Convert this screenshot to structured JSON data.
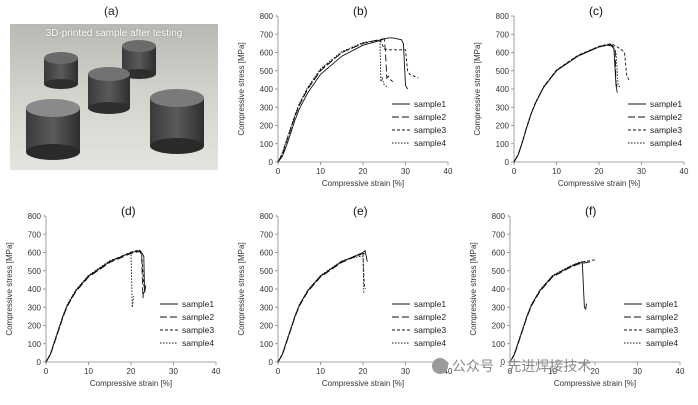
{
  "photo_panel": {
    "label": "(a)",
    "caption": "3D-printed sample after testing"
  },
  "watermark": "公众号 · 先进焊接技术",
  "chart_data": [
    {
      "id": "b",
      "type": "line",
      "label": "(b)",
      "xlabel": "Compressive strain [%]",
      "ylabel": "Compressive stress [MPa]",
      "xlim": [
        0,
        40
      ],
      "ylim": [
        0,
        800
      ],
      "xticks": [
        0,
        10,
        20,
        30,
        40
      ],
      "yticks": [
        0,
        100,
        200,
        300,
        400,
        500,
        600,
        700,
        800
      ],
      "legend_position": "lower-right",
      "series": [
        {
          "name": "sample1",
          "dash": "",
          "x": [
            0,
            1,
            2,
            3,
            4,
            5,
            7,
            10,
            15,
            20,
            24,
            25,
            26,
            27,
            28,
            29,
            29.5,
            30,
            30.5
          ],
          "y": [
            0,
            30,
            90,
            160,
            230,
            290,
            380,
            480,
            580,
            640,
            665,
            675,
            680,
            680,
            675,
            670,
            650,
            420,
            400
          ]
        },
        {
          "name": "sample2",
          "dash": "7 3",
          "x": [
            0,
            1,
            2,
            3,
            4,
            5,
            7,
            10,
            15,
            20,
            24,
            25,
            25.3,
            25.6,
            26,
            26.5,
            27
          ],
          "y": [
            0,
            40,
            110,
            180,
            250,
            310,
            400,
            500,
            600,
            650,
            672,
            675,
            600,
            460,
            470,
            450,
            440
          ]
        },
        {
          "name": "sample3",
          "dash": "3 2",
          "x": [
            0,
            1,
            2,
            3,
            4,
            5,
            7,
            10,
            15,
            20,
            24,
            25,
            26,
            28,
            30,
            30.5,
            31,
            32,
            33
          ],
          "y": [
            0,
            45,
            115,
            185,
            255,
            315,
            405,
            505,
            600,
            650,
            670,
            620,
            615,
            615,
            615,
            500,
            480,
            470,
            460
          ]
        },
        {
          "name": "sample4",
          "dash": "1.5 1.5",
          "x": [
            0,
            1,
            2,
            3,
            4,
            5,
            7,
            10,
            15,
            20,
            23,
            24,
            24.2,
            24.5,
            25,
            26
          ],
          "y": [
            0,
            50,
            120,
            190,
            260,
            320,
            410,
            510,
            605,
            655,
            665,
            668,
            440,
            460,
            420,
            410
          ]
        }
      ]
    },
    {
      "id": "c",
      "type": "line",
      "label": "(c)",
      "xlabel": "Compressive strain [%]",
      "ylabel": "Compressive stress [MPa]",
      "xlim": [
        0,
        40
      ],
      "ylim": [
        0,
        800
      ],
      "xticks": [
        0,
        10,
        20,
        30,
        40
      ],
      "yticks": [
        0,
        100,
        200,
        300,
        400,
        500,
        600,
        700,
        800
      ],
      "legend_position": "lower-right",
      "series": [
        {
          "name": "sample1",
          "dash": "",
          "x": [
            0,
            1,
            2,
            3,
            4,
            5,
            7,
            10,
            15,
            20,
            22,
            23,
            23.5,
            24,
            24.3
          ],
          "y": [
            0,
            40,
            110,
            190,
            260,
            320,
            410,
            500,
            580,
            630,
            640,
            635,
            620,
            420,
            380
          ]
        },
        {
          "name": "sample2",
          "dash": "7 3",
          "x": [
            0,
            1,
            2,
            3,
            4,
            5,
            7,
            10,
            15,
            20,
            22,
            23,
            23.8,
            24,
            24.5
          ],
          "y": [
            0,
            42,
            112,
            192,
            262,
            322,
            412,
            502,
            582,
            632,
            642,
            640,
            625,
            430,
            400
          ]
        },
        {
          "name": "sample3",
          "dash": "3 2",
          "x": [
            0,
            1,
            2,
            3,
            4,
            5,
            7,
            10,
            15,
            20,
            22,
            23,
            25,
            26,
            26.5,
            27
          ],
          "y": [
            0,
            44,
            114,
            194,
            264,
            324,
            414,
            504,
            584,
            634,
            645,
            648,
            620,
            600,
            480,
            450
          ]
        },
        {
          "name": "sample4",
          "dash": "1.5 1.5",
          "x": [
            0,
            1,
            2,
            3,
            4,
            5,
            7,
            10,
            15,
            20,
            22,
            23,
            24,
            24.5,
            25
          ],
          "y": [
            0,
            43,
            113,
            193,
            263,
            323,
            413,
            503,
            583,
            633,
            643,
            645,
            600,
            420,
            410
          ]
        }
      ]
    },
    {
      "id": "d",
      "type": "line",
      "label": "(d)",
      "xlabel": "Compressive strain [%]",
      "ylabel": "Compressive stress [MPa]",
      "xlim": [
        0,
        40
      ],
      "ylim": [
        0,
        800
      ],
      "xticks": [
        0,
        10,
        20,
        30,
        40
      ],
      "yticks": [
        0,
        100,
        200,
        300,
        400,
        500,
        600,
        700,
        800
      ],
      "legend_position": "lower-right",
      "series": [
        {
          "name": "sample1",
          "dash": "",
          "x": [
            0,
            1,
            2,
            3,
            4,
            5,
            7,
            10,
            15,
            20,
            22,
            22.5,
            23,
            23.2,
            23.5
          ],
          "y": [
            0,
            40,
            110,
            180,
            250,
            310,
            390,
            470,
            550,
            600,
            610,
            600,
            580,
            380,
            420
          ]
        },
        {
          "name": "sample2",
          "dash": "7 3",
          "x": [
            0,
            1,
            2,
            3,
            4,
            5,
            7,
            10,
            15,
            20,
            22,
            22.5,
            22.8,
            23
          ],
          "y": [
            0,
            38,
            105,
            175,
            245,
            305,
            385,
            465,
            545,
            595,
            605,
            590,
            350,
            400
          ]
        },
        {
          "name": "sample3",
          "dash": "3 2",
          "x": [
            0,
            1,
            2,
            3,
            4,
            5,
            7,
            10,
            15,
            20,
            22,
            22.5,
            23,
            23.3
          ],
          "y": [
            0,
            42,
            112,
            182,
            252,
            312,
            392,
            472,
            552,
            602,
            615,
            600,
            420,
            390
          ]
        },
        {
          "name": "sample4",
          "dash": "1.5 1.5",
          "x": [
            0,
            1,
            2,
            3,
            4,
            5,
            7,
            10,
            15,
            19,
            20,
            20.3,
            20.6
          ],
          "y": [
            0,
            45,
            115,
            185,
            255,
            315,
            395,
            475,
            555,
            590,
            595,
            300,
            360
          ]
        }
      ]
    },
    {
      "id": "e",
      "type": "line",
      "label": "(e)",
      "xlabel": "Compressive strain [%]",
      "ylabel": "Compressive stress [MPa]",
      "xlim": [
        0,
        40
      ],
      "ylim": [
        0,
        800
      ],
      "xticks": [
        0,
        10,
        20,
        30,
        40
      ],
      "yticks": [
        0,
        100,
        200,
        300,
        400,
        500,
        600,
        700,
        800
      ],
      "legend_position": "lower-right",
      "series": [
        {
          "name": "sample1",
          "dash": "",
          "x": [
            0,
            1,
            2,
            3,
            4,
            5,
            7,
            10,
            15,
            19,
            20,
            20.5,
            21
          ],
          "y": [
            0,
            40,
            110,
            180,
            250,
            310,
            390,
            470,
            550,
            590,
            600,
            610,
            550
          ]
        },
        {
          "name": "sample2",
          "dash": "7 3",
          "x": [
            0,
            1,
            2,
            3,
            4,
            5,
            7,
            10,
            15,
            19,
            20,
            20.5
          ],
          "y": [
            0,
            38,
            106,
            176,
            246,
            306,
            386,
            466,
            546,
            586,
            596,
            590
          ]
        },
        {
          "name": "sample3",
          "dash": "3 2",
          "x": [
            0,
            1,
            2,
            3,
            4,
            5,
            7,
            10,
            15,
            19,
            20,
            20.3,
            20.6
          ],
          "y": [
            0,
            42,
            112,
            182,
            252,
            312,
            392,
            472,
            552,
            585,
            592,
            420,
            400
          ]
        },
        {
          "name": "sample4",
          "dash": "1.5 1.5",
          "x": [
            0,
            1,
            2,
            3,
            4,
            5,
            7,
            10,
            15,
            19,
            20,
            20.2
          ],
          "y": [
            0,
            44,
            114,
            184,
            254,
            314,
            394,
            474,
            554,
            578,
            580,
            380
          ]
        }
      ]
    },
    {
      "id": "f",
      "type": "line",
      "label": "(f)",
      "xlabel": "Compressive strain [%]",
      "ylabel": "Compressive stress [MPa]",
      "xlim": [
        0,
        40
      ],
      "ylim": [
        0,
        800
      ],
      "xticks": [
        0,
        10,
        20,
        30,
        40
      ],
      "yticks": [
        0,
        100,
        200,
        300,
        400,
        500,
        600,
        700,
        800
      ],
      "legend_position": "lower-right",
      "series": [
        {
          "name": "sample1",
          "dash": "",
          "x": [
            0,
            1,
            2,
            3,
            4,
            5,
            7,
            10,
            14,
            16,
            17,
            17.5,
            17.8,
            18
          ],
          "y": [
            0,
            40,
            110,
            180,
            250,
            310,
            390,
            470,
            520,
            540,
            545,
            300,
            290,
            320
          ]
        },
        {
          "name": "sample2",
          "dash": "7 3",
          "x": [
            0,
            1,
            2,
            3,
            4,
            5,
            7,
            10,
            14,
            16,
            17,
            18,
            19
          ],
          "y": [
            0,
            38,
            106,
            176,
            246,
            306,
            386,
            466,
            516,
            536,
            541,
            545,
            550
          ]
        },
        {
          "name": "sample3",
          "dash": "3 2",
          "x": [
            0,
            1,
            2,
            3,
            4,
            5,
            7,
            10,
            14,
            16,
            17,
            18,
            19,
            20
          ],
          "y": [
            0,
            42,
            112,
            182,
            252,
            312,
            392,
            472,
            522,
            542,
            548,
            552,
            556,
            560
          ]
        },
        {
          "name": "sample4",
          "dash": "1.5 1.5",
          "x": [
            0,
            1,
            2,
            3,
            4,
            5,
            7,
            10,
            14,
            16,
            17,
            18
          ],
          "y": [
            0,
            44,
            114,
            184,
            254,
            314,
            394,
            474,
            524,
            544,
            550,
            552
          ]
        }
      ]
    }
  ]
}
